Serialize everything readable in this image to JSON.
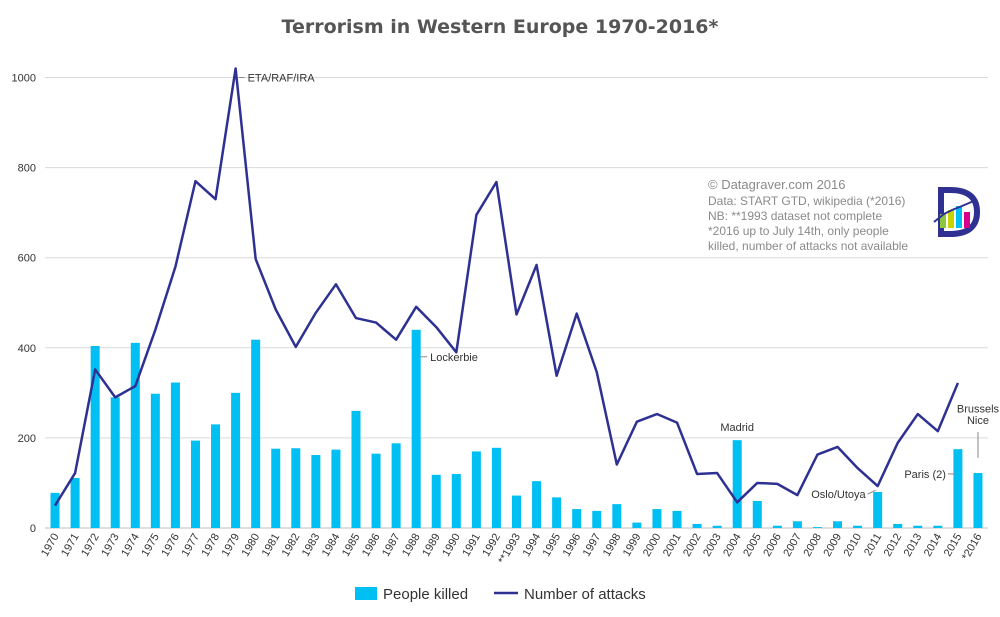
{
  "chart_data": {
    "type": "bar",
    "title": "Terrorism in Western Europe 1970-2016*",
    "categories": [
      "1970",
      "1971",
      "1972",
      "1973",
      "1974",
      "1975",
      "1976",
      "1977",
      "1978",
      "1979",
      "1980",
      "1981",
      "1982",
      "1983",
      "1984",
      "1985",
      "1986",
      "1987",
      "1988",
      "1989",
      "1990",
      "1991",
      "1992",
      "**1993",
      "1994",
      "1995",
      "1996",
      "1997",
      "1998",
      "1999",
      "2000",
      "2001",
      "2002",
      "2003",
      "2004",
      "2005",
      "2006",
      "2007",
      "2008",
      "2009",
      "2010",
      "2011",
      "2012",
      "2013",
      "2014",
      "2015",
      "*2016"
    ],
    "ylim": [
      0,
      1050
    ],
    "yticks": [
      "0",
      "200",
      "400",
      "600",
      "800",
      "1000"
    ],
    "series": [
      {
        "name": "People killed",
        "type": "bar",
        "color": "#00bff3",
        "values": [
          78,
          111,
          404,
          290,
          411,
          298,
          323,
          194,
          230,
          300,
          418,
          176,
          177,
          162,
          174,
          260,
          165,
          188,
          440,
          118,
          120,
          170,
          178,
          72,
          104,
          68,
          42,
          38,
          53,
          12,
          42,
          38,
          9,
          5,
          195,
          60,
          5,
          15,
          2,
          15,
          5,
          80,
          9,
          5,
          5,
          175,
          122
        ]
      },
      {
        "name": "Number of attacks",
        "type": "line",
        "color": "#2e3192",
        "values": [
          50,
          122,
          352,
          290,
          315,
          440,
          580,
          770,
          730,
          1020,
          597,
          485,
          402,
          478,
          541,
          466,
          456,
          418,
          491,
          446,
          390,
          695,
          768,
          474,
          584,
          338,
          476,
          346,
          141,
          236,
          253,
          234,
          120,
          122,
          57,
          100,
          98,
          73,
          163,
          180,
          133,
          93,
          189,
          253,
          215,
          322,
          null
        ]
      }
    ],
    "annotations": [
      {
        "text": "ETA/RAF/IRA",
        "category": "1979",
        "value": 1000
      },
      {
        "text": "Lockerbie",
        "category": "1988",
        "value": 380
      },
      {
        "text": "Madrid",
        "category": "2004",
        "value": 215
      },
      {
        "text": "Oslo/Utoya",
        "category": "2011",
        "value": 75
      },
      {
        "text": "Paris (2)",
        "category": "2015",
        "value": 120
      },
      {
        "text": "Brussels",
        "category": "*2016",
        "value": 265
      },
      {
        "text": "Nice",
        "category": "*2016",
        "value": 240
      }
    ],
    "legend": {
      "position": "bottom"
    }
  },
  "credits": {
    "line1": "© Datagraver.com 2016",
    "line2": "Data: START GTD, wikipedia (*2016)",
    "line3": "NB: **1993 dataset not complete",
    "line4": "*2016 up to July 14th, only people",
    "line5": "killed, number of attacks not available"
  },
  "logo": {
    "letter": "D",
    "colors": [
      "#2e3192",
      "#8dc63f",
      "#00bff3",
      "#f7941d",
      "#d6008c"
    ]
  }
}
